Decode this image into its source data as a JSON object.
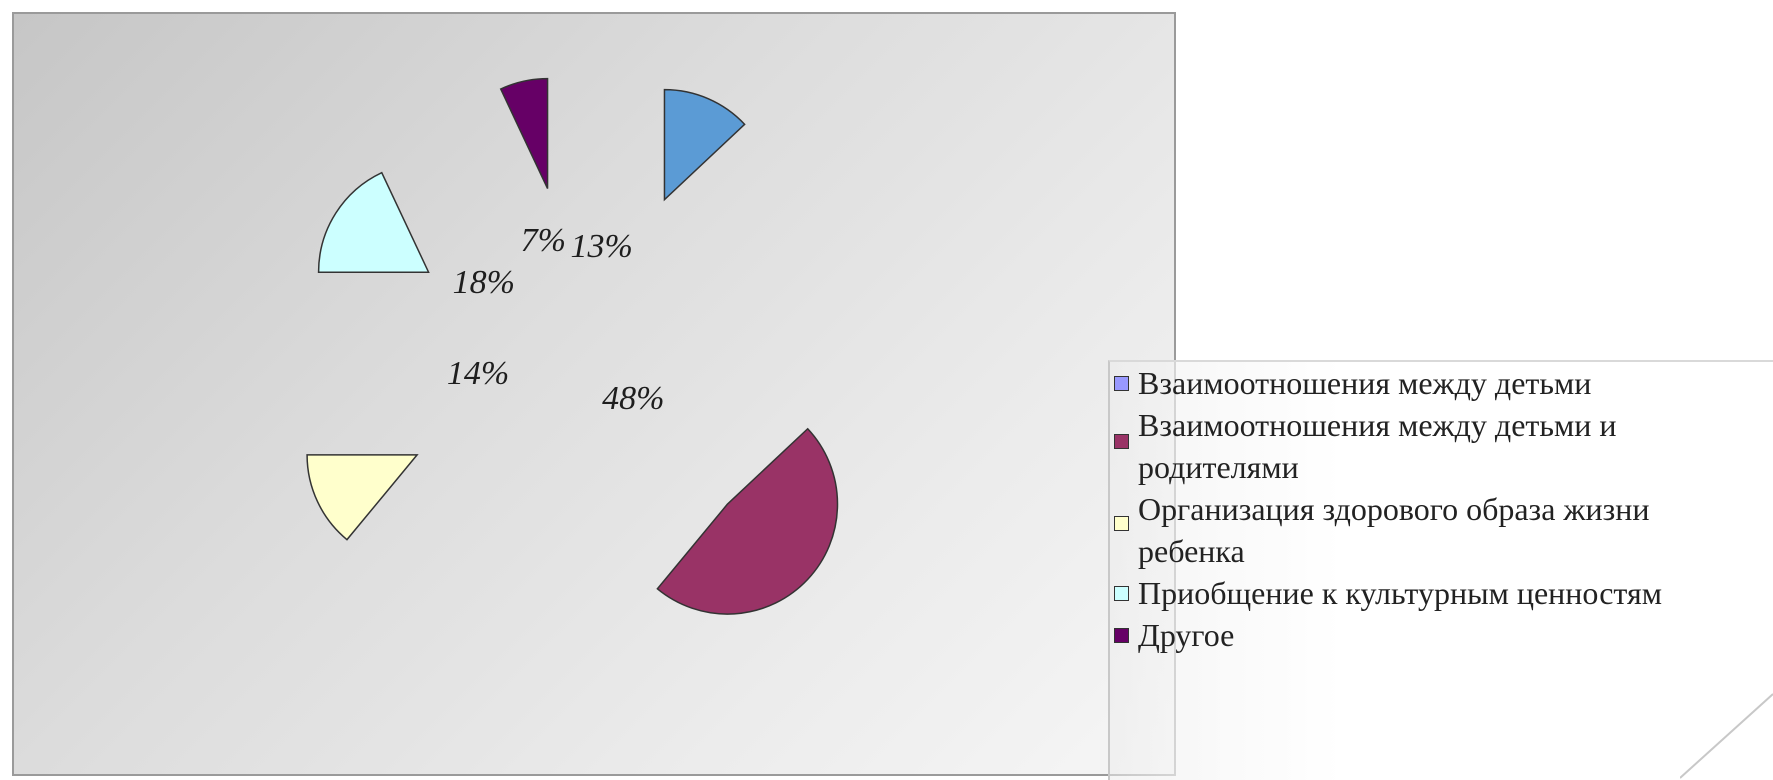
{
  "chart_data": {
    "type": "pie",
    "title": "",
    "slices": [
      {
        "label": "Взаимоотношения между детьми",
        "value": 13,
        "value_label": "13%",
        "color": "#5b9bd5",
        "legend_color": "#9999ff"
      },
      {
        "label": "Взаимоотношения между детьми и родителями",
        "value": 48,
        "value_label": "48%",
        "color": "#993366",
        "legend_color": "#993366"
      },
      {
        "label": "Организация здорового образа жизни ребенка",
        "value": 14,
        "value_label": "14%",
        "color": "#ffffcc",
        "legend_color": "#ffffcc"
      },
      {
        "label": "Приобщение к культурным ценностям",
        "value": 18,
        "value_label": "18%",
        "color": "#ccffff",
        "legend_color": "#ccffff"
      },
      {
        "label": "Другое",
        "value": 7,
        "value_label": "7%",
        "color": "#660066",
        "legend_color": "#660066"
      }
    ],
    "legend_position": "right",
    "exploded": true,
    "label_style": "italic"
  },
  "legend": {
    "lines": [
      [
        "Взаимоотношения между детьми"
      ],
      [
        "Взаимоотношения между детьми и",
        "родителями"
      ],
      [
        "Организация здорового образа жизни",
        "ребенка"
      ],
      [
        "Приобщение к культурным ценностям"
      ],
      [
        "Другое"
      ]
    ]
  }
}
